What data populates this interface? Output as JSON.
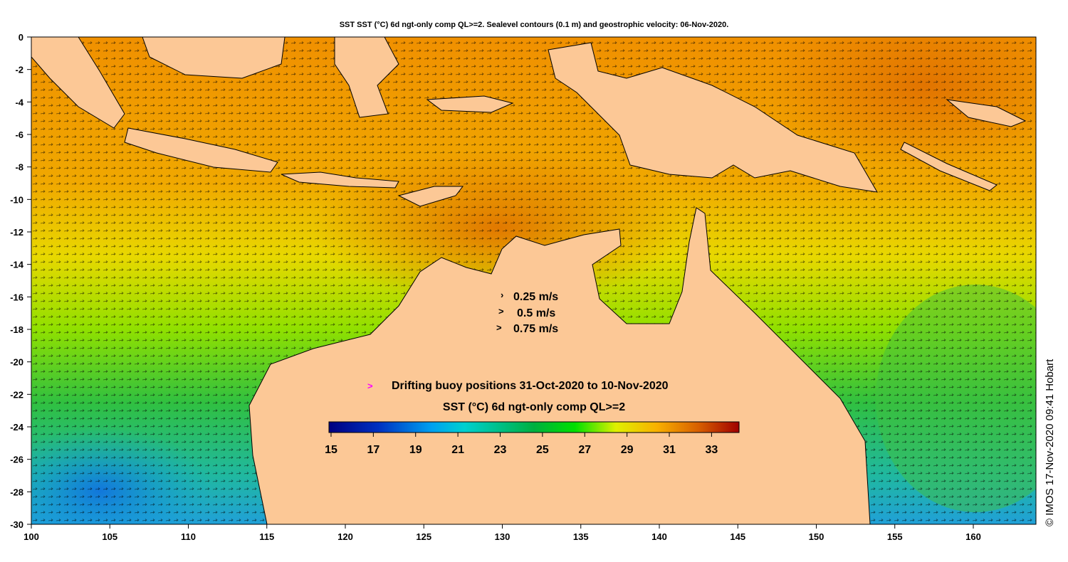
{
  "title": "SST SST (°C) 6d ngt-only comp QL>=2. Sealevel contours (0.1 m) and geostrophic velocity: 06-Nov-2020.",
  "axes": {
    "x_ticks": [
      "100",
      "105",
      "110",
      "115",
      "120",
      "125",
      "130",
      "135",
      "140",
      "145",
      "150",
      "155",
      "160"
    ],
    "y_ticks": [
      "0",
      "-2",
      "-4",
      "-6",
      "-8",
      "-10",
      "-12",
      "-14",
      "-16",
      "-18",
      "-20",
      "-22",
      "-24",
      "-26",
      "-28",
      "-30"
    ],
    "lon_range": [
      100,
      164
    ],
    "lat_range": [
      -30,
      0
    ]
  },
  "velocity_legend": [
    "0.25 m/s",
    "0.5 m/s",
    "0.75 m/s"
  ],
  "buoy_legend": {
    "marker": ">",
    "text": "Drifting buoy positions 31-Oct-2020 to 10-Nov-2020",
    "color": "#ff00ff"
  },
  "colorbar": {
    "title": "SST (°C) 6d ngt-only comp QL>=2",
    "ticks": [
      "15",
      "17",
      "19",
      "21",
      "23",
      "25",
      "27",
      "29",
      "31",
      "33"
    ],
    "range": [
      14.9,
      34.3
    ]
  },
  "credit": "© IMOS 17-Nov-2020 09:41 Hobart",
  "colors": {
    "land": "#fcc896",
    "warm": "#f08c00",
    "mid": "#f0d000",
    "green": "#30c030",
    "cool": "#00b0e0"
  }
}
